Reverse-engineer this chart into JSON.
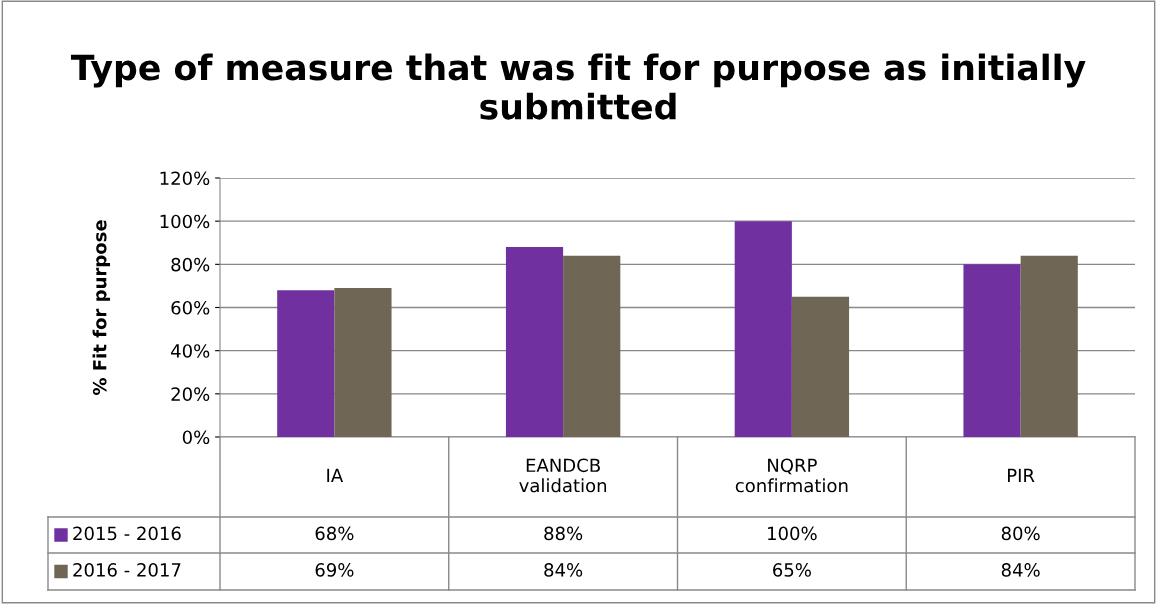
{
  "chart_data": {
    "type": "bar",
    "title": "Type of measure that was fit for purpose as initially submitted",
    "ylabel": "% Fit for purpose",
    "categories": [
      "IA",
      "EANDCB\nvalidation",
      "NQRP\nconfirmation",
      "PIR"
    ],
    "series": [
      {
        "name": "2015 - 2016",
        "color": "#7030a0",
        "values": [
          68,
          88,
          100,
          80
        ],
        "value_labels": [
          "68%",
          "88%",
          "100%",
          "80%"
        ]
      },
      {
        "name": "2016 - 2017",
        "color": "#706656",
        "values": [
          69,
          84,
          65,
          84
        ],
        "value_labels": [
          "69%",
          "84%",
          "65%",
          "84%"
        ]
      }
    ],
    "ylim": [
      0,
      120
    ],
    "yticks": [
      {
        "value": 0,
        "label": "0%"
      },
      {
        "value": 20,
        "label": "20%"
      },
      {
        "value": 40,
        "label": "40%"
      },
      {
        "value": 60,
        "label": "60%"
      },
      {
        "value": 80,
        "label": "80%"
      },
      {
        "value": 100,
        "label": "100%"
      },
      {
        "value": 120,
        "label": "120%"
      }
    ],
    "grid": "y",
    "legend": "bottom"
  }
}
